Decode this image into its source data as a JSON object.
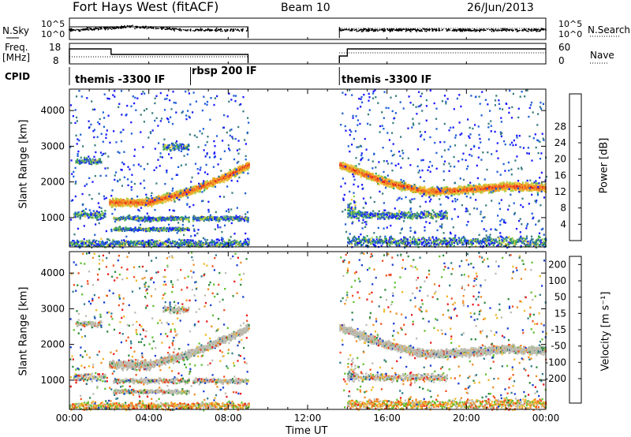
{
  "header": {
    "title": "Fort Hays West (fitACF)",
    "beam": "Beam 10",
    "date": "26/Jun/2013"
  },
  "top_panels": {
    "nsky_label": "N.Sky",
    "nsearch_label": "N.Search",
    "nsky_ticks": [
      "10^5",
      "10^0"
    ],
    "nsearch_ticks": [
      "10^5",
      "10^0"
    ],
    "freq_label_line1": "Freq.",
    "freq_label_line2": "[MHz]",
    "freq_ticks": [
      "18",
      "8"
    ],
    "nave_label": "Nave",
    "nave_ticks": [
      "60",
      "0"
    ],
    "cpid_label": "CPID",
    "cpid_segments": [
      "themis -3300 IF",
      "rbsp 200 IF",
      "themis -3300 IF"
    ]
  },
  "chart_data": [
    {
      "type": "heatmap",
      "name": "power",
      "ylabel": "Slant Range [km]",
      "xlabel": "",
      "x_ticks": [
        "00:00",
        "04:00",
        "08:00",
        "12:00",
        "16:00",
        "20:00",
        "00:00"
      ],
      "xlim_hours": [
        0,
        24
      ],
      "y_ticks": [
        1000,
        2000,
        3000,
        4000
      ],
      "ylim": [
        180,
        4600
      ],
      "colorbar": {
        "label": "Power [dB]",
        "ticks": [
          4,
          8,
          12,
          16,
          20,
          24,
          28
        ],
        "colors": [
          "#1a1aff",
          "#1f5fd6",
          "#3a7d7d",
          "#2fa05a",
          "#9ad04a",
          "#e8c53a",
          "#f2a020",
          "#f06a2a",
          "#e21a1a"
        ]
      },
      "data_gap_hours": [
        9.0,
        13.6
      ],
      "features": [
        {
          "desc": "band",
          "t": [
            2.0,
            4.0,
            6.0,
            8.0,
            9.0
          ],
          "range_km": [
            1450,
            1450,
            1750,
            2200,
            2500
          ]
        },
        {
          "desc": "band",
          "t": [
            13.6,
            16.0,
            18.0,
            20.0,
            22.0,
            24.0
          ],
          "range_km": [
            2500,
            2000,
            1750,
            1800,
            1900,
            1850
          ]
        }
      ]
    },
    {
      "type": "heatmap",
      "name": "velocity",
      "ylabel": "Slant Range [km]",
      "xlabel": "Time UT",
      "x_ticks": [
        "00:00",
        "04:00",
        "08:00",
        "12:00",
        "16:00",
        "20:00",
        "00:00"
      ],
      "xlim_hours": [
        0,
        24
      ],
      "y_ticks": [
        1000,
        2000,
        3000,
        4000
      ],
      "ylim": [
        180,
        4600
      ],
      "colorbar": {
        "label": "Velocity [m s⁻¹]",
        "ticks": [
          200,
          100,
          50,
          15,
          -15,
          -50,
          -100,
          -200
        ],
        "colors": [
          "#1a3fd0",
          "#2f7a8a",
          "#2a8a3a",
          "#60c030",
          "#bcbcb0",
          "#f0b828",
          "#f08a20",
          "#f05020",
          "#e81a1a"
        ]
      },
      "data_gap_hours": [
        9.0,
        13.6
      ]
    }
  ]
}
